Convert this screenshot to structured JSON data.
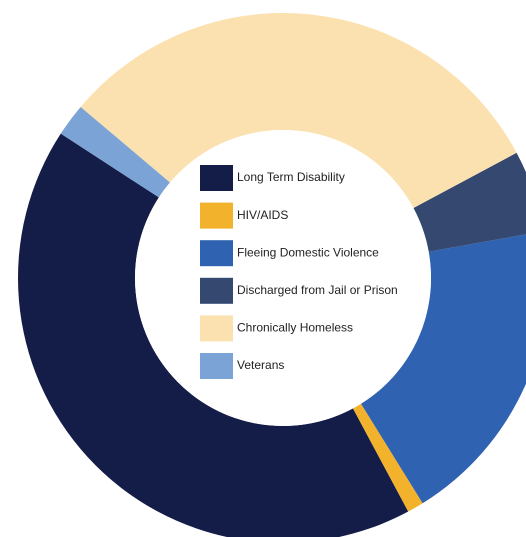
{
  "chart_data": {
    "type": "donut",
    "categories": [
      "Long Term Disability",
      "HIV/AIDS",
      "Fleeing Domestic Violence",
      "Discharged from Jail or Prison",
      "Chronically Homeless",
      "Veterans"
    ],
    "values": [
      42,
      1,
      19,
      5,
      31,
      2
    ],
    "colors": [
      "#141c48",
      "#f2b22c",
      "#2f62b0",
      "#344870",
      "#fbe1b0",
      "#7ba3d5"
    ],
    "legend": "center"
  }
}
